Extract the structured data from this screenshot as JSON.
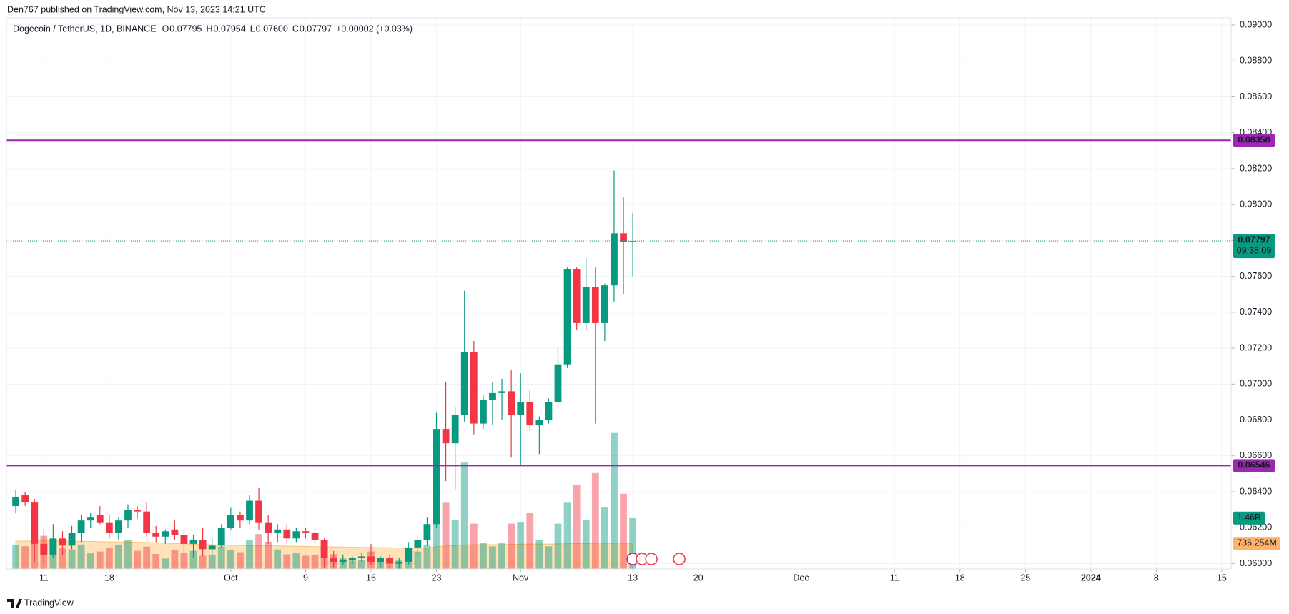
{
  "chart_data": {
    "type": "candlestick",
    "header": "Den767 published on TradingView.com, Nov 13, 2023 14:21 UTC",
    "title": "Dogecoin / TetherUS, 1D, BINANCE",
    "ohlc_legend": [
      {
        "key": "O",
        "value": "0.07795"
      },
      {
        "key": "H",
        "value": "0.07954"
      },
      {
        "key": "L",
        "value": "0.07600"
      },
      {
        "key": "C",
        "value": "0.07797"
      }
    ],
    "change": "+0.00002 (+0.03%)",
    "x": [
      "2023-09-08",
      "2023-09-09",
      "2023-09-10",
      "2023-09-11",
      "2023-09-12",
      "2023-09-13",
      "2023-09-14",
      "2023-09-15",
      "2023-09-16",
      "2023-09-17",
      "2023-09-18",
      "2023-09-19",
      "2023-09-20",
      "2023-09-21",
      "2023-09-22",
      "2023-09-23",
      "2023-09-24",
      "2023-09-25",
      "2023-09-26",
      "2023-09-27",
      "2023-09-28",
      "2023-09-29",
      "2023-09-30",
      "2023-10-01",
      "2023-10-02",
      "2023-10-03",
      "2023-10-04",
      "2023-10-05",
      "2023-10-06",
      "2023-10-07",
      "2023-10-08",
      "2023-10-09",
      "2023-10-10",
      "2023-10-11",
      "2023-10-12",
      "2023-10-13",
      "2023-10-14",
      "2023-10-15",
      "2023-10-16",
      "2023-10-17",
      "2023-10-18",
      "2023-10-19",
      "2023-10-20",
      "2023-10-21",
      "2023-10-22",
      "2023-10-23",
      "2023-10-24",
      "2023-10-25",
      "2023-10-26",
      "2023-10-27",
      "2023-10-28",
      "2023-10-29",
      "2023-10-30",
      "2023-10-31",
      "2023-11-01",
      "2023-11-02",
      "2023-11-03",
      "2023-11-04",
      "2023-11-05",
      "2023-11-06",
      "2023-11-07",
      "2023-11-08",
      "2023-11-09",
      "2023-11-10",
      "2023-11-11",
      "2023-11-12",
      "2023-11-13"
    ],
    "open": [
      0.0632,
      0.0638,
      0.0634,
      0.0611,
      0.0605,
      0.0614,
      0.061,
      0.0617,
      0.0624,
      0.0627,
      0.0623,
      0.0617,
      0.0624,
      0.063,
      0.0629,
      0.0617,
      0.0615,
      0.0619,
      0.0616,
      0.0611,
      0.0613,
      0.0608,
      0.061,
      0.062,
      0.0627,
      0.0624,
      0.0635,
      0.0623,
      0.0617,
      0.0619,
      0.0614,
      0.0618,
      0.0617,
      0.0613,
      0.0603,
      0.0601,
      0.0602,
      0.0603,
      0.0604,
      0.0601,
      0.0603,
      0.06,
      0.0601,
      0.0609,
      0.0613,
      0.0622,
      0.0675,
      0.0667,
      0.0683,
      0.0718,
      0.0678,
      0.0691,
      0.0695,
      0.0696,
      0.0683,
      0.069,
      0.0677,
      0.068,
      0.069,
      0.0711,
      0.0764,
      0.0734,
      0.0754,
      0.0734,
      0.0755,
      0.0784,
      0.07795
    ],
    "high": [
      0.0641,
      0.064,
      0.0636,
      0.0619,
      0.0622,
      0.0618,
      0.0621,
      0.0627,
      0.0628,
      0.0632,
      0.0627,
      0.0626,
      0.0633,
      0.0632,
      0.0634,
      0.0621,
      0.0619,
      0.0624,
      0.0619,
      0.0616,
      0.062,
      0.0614,
      0.0622,
      0.0631,
      0.0629,
      0.0638,
      0.0642,
      0.0627,
      0.0622,
      0.0622,
      0.062,
      0.062,
      0.062,
      0.0614,
      0.0607,
      0.0605,
      0.0604,
      0.0606,
      0.0611,
      0.0604,
      0.0605,
      0.0603,
      0.0612,
      0.0615,
      0.0626,
      0.0684,
      0.0701,
      0.0687,
      0.0752,
      0.0724,
      0.0694,
      0.0701,
      0.0703,
      0.0708,
      0.0706,
      0.0697,
      0.0682,
      0.0692,
      0.072,
      0.0765,
      0.0765,
      0.077,
      0.0765,
      0.0756,
      0.0819,
      0.0804,
      0.07954
    ],
    "low": [
      0.0628,
      0.0632,
      0.0601,
      0.06,
      0.0603,
      0.0605,
      0.0608,
      0.0612,
      0.062,
      0.0622,
      0.0614,
      0.0613,
      0.062,
      0.0625,
      0.0615,
      0.0612,
      0.0611,
      0.0613,
      0.0606,
      0.0603,
      0.0604,
      0.0605,
      0.0609,
      0.0619,
      0.062,
      0.0622,
      0.0619,
      0.0611,
      0.0612,
      0.0611,
      0.0612,
      0.0614,
      0.0611,
      0.0598,
      0.0598,
      0.0599,
      0.06,
      0.0601,
      0.0599,
      0.0598,
      0.0598,
      0.0597,
      0.0599,
      0.0605,
      0.061,
      0.062,
      0.0646,
      0.0641,
      0.0679,
      0.0672,
      0.0675,
      0.0677,
      0.068,
      0.0659,
      0.0655,
      0.0674,
      0.0661,
      0.0678,
      0.0687,
      0.0709,
      0.073,
      0.073,
      0.0678,
      0.0724,
      0.0746,
      0.075,
      0.076
    ],
    "close": [
      0.0637,
      0.0634,
      0.0611,
      0.0605,
      0.0614,
      0.061,
      0.0617,
      0.0624,
      0.0626,
      0.0623,
      0.0617,
      0.0624,
      0.063,
      0.0629,
      0.0617,
      0.0615,
      0.0618,
      0.0616,
      0.0611,
      0.0613,
      0.0608,
      0.061,
      0.062,
      0.0627,
      0.0624,
      0.0635,
      0.0623,
      0.0617,
      0.0619,
      0.0614,
      0.0618,
      0.0617,
      0.0613,
      0.0603,
      0.0601,
      0.0602,
      0.0603,
      0.0604,
      0.0601,
      0.0603,
      0.06,
      0.0601,
      0.0609,
      0.0613,
      0.0622,
      0.0675,
      0.0667,
      0.0683,
      0.0718,
      0.0678,
      0.0691,
      0.0695,
      0.0696,
      0.0683,
      0.069,
      0.0677,
      0.068,
      0.069,
      0.0711,
      0.0764,
      0.0734,
      0.0754,
      0.0734,
      0.0755,
      0.0784,
      0.0779,
      0.07797
    ],
    "volume": [
      700000000,
      650000000,
      900000000,
      950000000,
      820000000,
      600000000,
      560000000,
      700000000,
      450000000,
      500000000,
      600000000,
      700000000,
      820000000,
      520000000,
      640000000,
      430000000,
      300000000,
      550000000,
      460000000,
      520000000,
      380000000,
      400000000,
      640000000,
      540000000,
      480000000,
      820000000,
      1000000000,
      780000000,
      560000000,
      420000000,
      470000000,
      380000000,
      400000000,
      800000000,
      420000000,
      300000000,
      240000000,
      260000000,
      500000000,
      280000000,
      300000000,
      240000000,
      350000000,
      500000000,
      700000000,
      2350000000,
      1900000000,
      1400000000,
      3050000000,
      1300000000,
      750000000,
      650000000,
      750000000,
      1300000000,
      1350000000,
      1600000000,
      820000000,
      650000000,
      1300000000,
      1900000000,
      2400000000,
      1400000000,
      2750000000,
      1760000000,
      3900000000,
      2160000000,
      1460000000
    ],
    "volume_value_label": "1.46B",
    "volume_ma": [
      800000000,
      800000000,
      805000000,
      810000000,
      810000000,
      805000000,
      800000000,
      795000000,
      790000000,
      785000000,
      780000000,
      775000000,
      770000000,
      765000000,
      760000000,
      755000000,
      745000000,
      735000000,
      725000000,
      715000000,
      705000000,
      695000000,
      690000000,
      680000000,
      675000000,
      670000000,
      670000000,
      665000000,
      660000000,
      655000000,
      650000000,
      645000000,
      640000000,
      640000000,
      635000000,
      630000000,
      625000000,
      620000000,
      620000000,
      615000000,
      610000000,
      605000000,
      600000000,
      600000000,
      600000000,
      640000000,
      660000000,
      670000000,
      690000000,
      700000000,
      700000000,
      700000000,
      700000000,
      705000000,
      710000000,
      715000000,
      715000000,
      715000000,
      720000000,
      725000000,
      730000000,
      730000000,
      735000000,
      735000000,
      740000000,
      738000000,
      736254000
    ],
    "volume_ma_value_label": "736.254M",
    "volume_lim": [
      0,
      15800000000
    ],
    "price_label": "0.07797",
    "countdown": "09:38:09",
    "levels": [
      {
        "value": 0.08358,
        "label": "0.08358",
        "color": "#9c27b0"
      },
      {
        "value": 0.06546,
        "label": "0.06546",
        "color": "#9c27b0"
      }
    ],
    "ylim": [
      0.0597,
      0.0904
    ],
    "yticks": [
      {
        "value": 0.06,
        "label": "0.06000"
      },
      {
        "value": 0.062,
        "label": "0.06200"
      },
      {
        "value": 0.064,
        "label": "0.06400"
      },
      {
        "value": 0.066,
        "label": "0.06600"
      },
      {
        "value": 0.068,
        "label": "0.06800"
      },
      {
        "value": 0.07,
        "label": "0.07000"
      },
      {
        "value": 0.072,
        "label": "0.07200"
      },
      {
        "value": 0.074,
        "label": "0.07400"
      },
      {
        "value": 0.076,
        "label": "0.07600"
      },
      {
        "value": 0.078,
        "label": "0.07800"
      },
      {
        "value": 0.08,
        "label": "0.08000"
      },
      {
        "value": 0.082,
        "label": "0.08200"
      },
      {
        "value": 0.084,
        "label": "0.08400"
      },
      {
        "value": 0.086,
        "label": "0.08600"
      },
      {
        "value": 0.088,
        "label": "0.08800"
      },
      {
        "value": 0.09,
        "label": "0.09000"
      }
    ],
    "xlim": [
      "2023-09-07",
      "2024-01-16"
    ],
    "xticks": [
      {
        "value": "2023-09-11",
        "label": "11"
      },
      {
        "value": "2023-09-18",
        "label": "18"
      },
      {
        "value": "2023-10-01",
        "label": "Oct"
      },
      {
        "value": "2023-10-09",
        "label": "9"
      },
      {
        "value": "2023-10-16",
        "label": "16"
      },
      {
        "value": "2023-10-23",
        "label": "23"
      },
      {
        "value": "2023-11-01",
        "label": "Nov"
      },
      {
        "value": "2023-11-13",
        "label": "13"
      },
      {
        "value": "2023-11-20",
        "label": "20"
      },
      {
        "value": "2023-12-01",
        "label": "Dec"
      },
      {
        "value": "2023-12-11",
        "label": "11"
      },
      {
        "value": "2023-12-18",
        "label": "18"
      },
      {
        "value": "2023-12-25",
        "label": "25"
      },
      {
        "value": "2024-01-01",
        "label": "2024"
      },
      {
        "value": "2024-01-08",
        "label": "8"
      },
      {
        "value": "2024-01-15",
        "label": "15"
      }
    ],
    "up_color": "#089981",
    "down_color": "#f23645",
    "grid": true,
    "footer": "TradingView"
  }
}
